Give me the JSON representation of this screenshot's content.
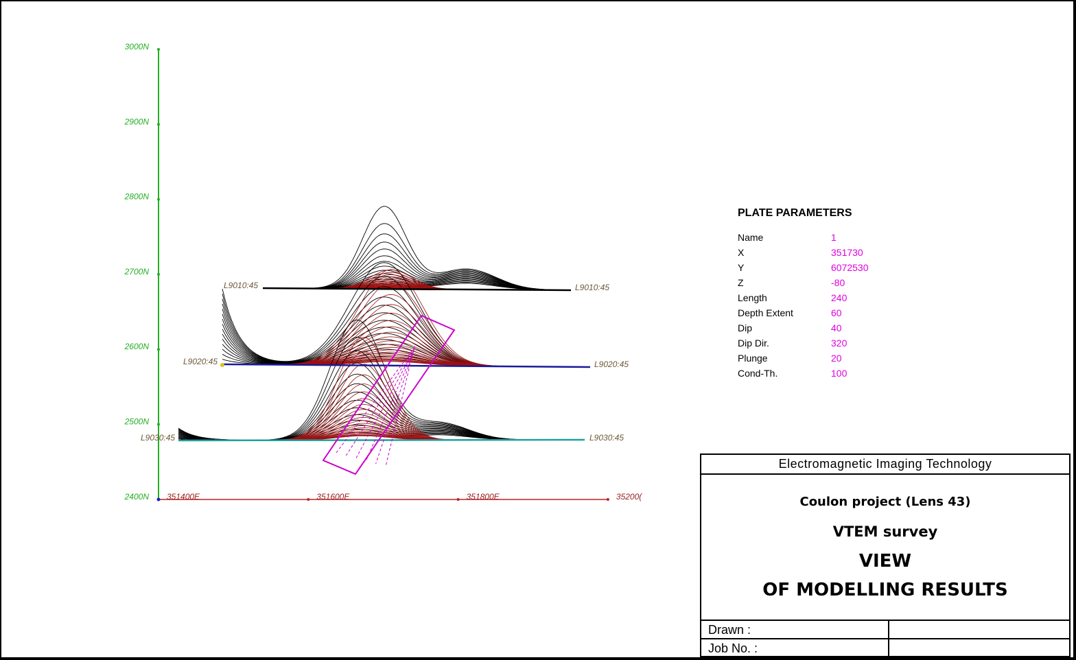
{
  "axes": {
    "y_ticks": [
      "3000N",
      "2900N",
      "2800N",
      "2700N",
      "2600N",
      "2500N",
      "2400N"
    ],
    "x_ticks": [
      "351400E",
      "351600E",
      "351800E",
      "35200("
    ],
    "y_color": "#22b022",
    "x_color": "#c02020"
  },
  "lines": [
    {
      "name": "L9010:45",
      "left_label": "L9010:45",
      "right_label": "L9010:45",
      "color": "#000000"
    },
    {
      "name": "L9020:45",
      "left_label": "L9020:45",
      "right_label": "L9020:45",
      "color": "#1a1a9a"
    },
    {
      "name": "L9030:45",
      "left_label": "L9030:45",
      "right_label": "L9030:45",
      "color": "#20a0a0"
    }
  ],
  "profile_colors": {
    "measured": "#000000",
    "modelled": "#a01010"
  },
  "plate_color": "#cc00cc",
  "plate_parameters": {
    "title": "PLATE PARAMETERS",
    "rows": [
      {
        "name": "Name",
        "value": "1"
      },
      {
        "name": "X",
        "value": "351730"
      },
      {
        "name": "Y",
        "value": "6072530"
      },
      {
        "name": "Z",
        "value": "-80"
      },
      {
        "name": "Length",
        "value": "240"
      },
      {
        "name": "Depth  Extent",
        "value": "60"
      },
      {
        "name": "Dip",
        "value": "40"
      },
      {
        "name": "Dip Dir.",
        "value": "320"
      },
      {
        "name": "Plunge",
        "value": "20"
      },
      {
        "name": "Cond-Th.",
        "value": "100"
      }
    ]
  },
  "title_block": {
    "company": "Electromagnetic Imaging Technology",
    "project": "Coulon project (Lens 43)",
    "survey": "VTEM survey",
    "view": "VIEW",
    "heading": "OF MODELLING RESULTS",
    "drawn_label": "Drawn :",
    "job_label": "Job No. :"
  }
}
